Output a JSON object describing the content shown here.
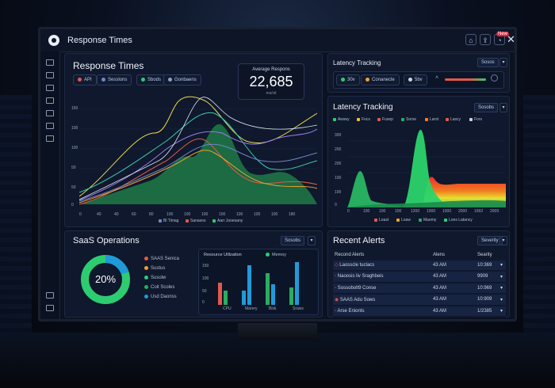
{
  "window": {
    "title": "Response Times",
    "notification_badge": "New"
  },
  "response_panel": {
    "title": "Response Times",
    "filters": [
      {
        "label": "API",
        "color": "#e2594b"
      },
      {
        "label": "Sesslons",
        "color": "#6f86c7"
      },
      {
        "label": "Sbods",
        "color": "#2ecc71"
      },
      {
        "label": "Gonbaens",
        "color": "#8aa0c8"
      }
    ],
    "kpi": {
      "label": "Average Respons",
      "value": "22,685",
      "sub": "ms/vit"
    },
    "y_ticks": [
      "150",
      "100",
      "100",
      "50",
      "50",
      "0"
    ],
    "x_ticks": [
      "0",
      "40",
      "40",
      "60",
      "80",
      "100",
      "100",
      "100",
      "100",
      "100",
      "100",
      "100",
      "180"
    ],
    "legend": [
      {
        "label": "Bl Timag",
        "color": "#6f86c7"
      },
      {
        "label": "Sanasos",
        "color": "#e2594b"
      },
      {
        "label": "Aarr Jooesany",
        "color": "#2ecc71"
      }
    ]
  },
  "latency_small": {
    "title": "Latency Tracking",
    "select_label": "Sosos",
    "chips": [
      {
        "label": "30v",
        "color": "#2ecc71"
      },
      {
        "label": "Conanecle",
        "color": "#f0a030"
      },
      {
        "label": "5bv",
        "color": "#c8d2e6"
      }
    ]
  },
  "latency_panel": {
    "title": "Latency Tracking",
    "select_label": "Sosobs",
    "legend_top": [
      {
        "label": "Awsey",
        "color": "#2ecc71"
      },
      {
        "label": "Focs",
        "color": "#f0c030"
      },
      {
        "label": "Fusep",
        "color": "#e2594b"
      },
      {
        "label": "Sorse",
        "color": "#27ae60"
      },
      {
        "label": "Larst",
        "color": "#f08030"
      },
      {
        "label": "Lascy",
        "color": "#e2594b"
      },
      {
        "label": "Fors",
        "color": "#c8d2e6"
      }
    ],
    "y_ticks": [
      "300",
      "200",
      "200",
      "100",
      "100",
      "0"
    ],
    "x_ticks": [
      "0",
      "100",
      "100",
      "100",
      "1200",
      "1000",
      "1000",
      "2000",
      "1992",
      "2009"
    ],
    "legend_bottom": [
      {
        "label": "Loast",
        "color": "#e2594b"
      },
      {
        "label": "Loaw",
        "color": "#f0a030"
      },
      {
        "label": "Maemy",
        "color": "#27ae60"
      },
      {
        "label": "Loes Latancy",
        "color": "#2ecc71"
      }
    ]
  },
  "saas_panel": {
    "title": "SaaS Operations",
    "select_label": "Sosobs",
    "donut_value": "20%",
    "donut_fraction": 0.2,
    "legend": [
      {
        "label": "SAAS Senica",
        "color": "#e2594b"
      },
      {
        "label": "Sustus",
        "color": "#f0a030"
      },
      {
        "label": "Susolw",
        "color": "#2ecc71"
      },
      {
        "label": "Coit Scoles",
        "color": "#27ae60"
      },
      {
        "label": "Usd Daonss",
        "color": "#1f9bd9"
      }
    ],
    "resource_title": "Resource Utllzation",
    "resource_legend": "Memoy",
    "bar_y_ticks": [
      "150",
      "100",
      "50",
      "0"
    ],
    "bar_categories": [
      "CPU",
      "Marery",
      "Bisk",
      "Sraws"
    ]
  },
  "alerts_panel": {
    "title": "Recent Alerts",
    "select_label": "Severity",
    "columns": [
      "Recond Alerts",
      "Alens",
      "Searity"
    ],
    "rows": [
      {
        "icon_color": "#e2594b",
        "name": "Laosscle tuclacs",
        "time": "43 AM",
        "sev": "10:369"
      },
      {
        "icon_color": "#e2594b",
        "name": "Naoosis liv Sraghbeis",
        "time": "43 AM",
        "sev": "9909"
      },
      {
        "icon_color": "#e2594b",
        "name": "Sossobolt9 Conse",
        "time": "43 AM",
        "sev": "10:969"
      },
      {
        "icon_color": "#e2594b",
        "name": "SAAS Adu Sows",
        "time": "43 AM",
        "sev": "10:909"
      },
      {
        "icon_color": "#e2594b",
        "name": "Arse Enionts",
        "time": "43 AM",
        "sev": "1/2385"
      }
    ]
  }
}
